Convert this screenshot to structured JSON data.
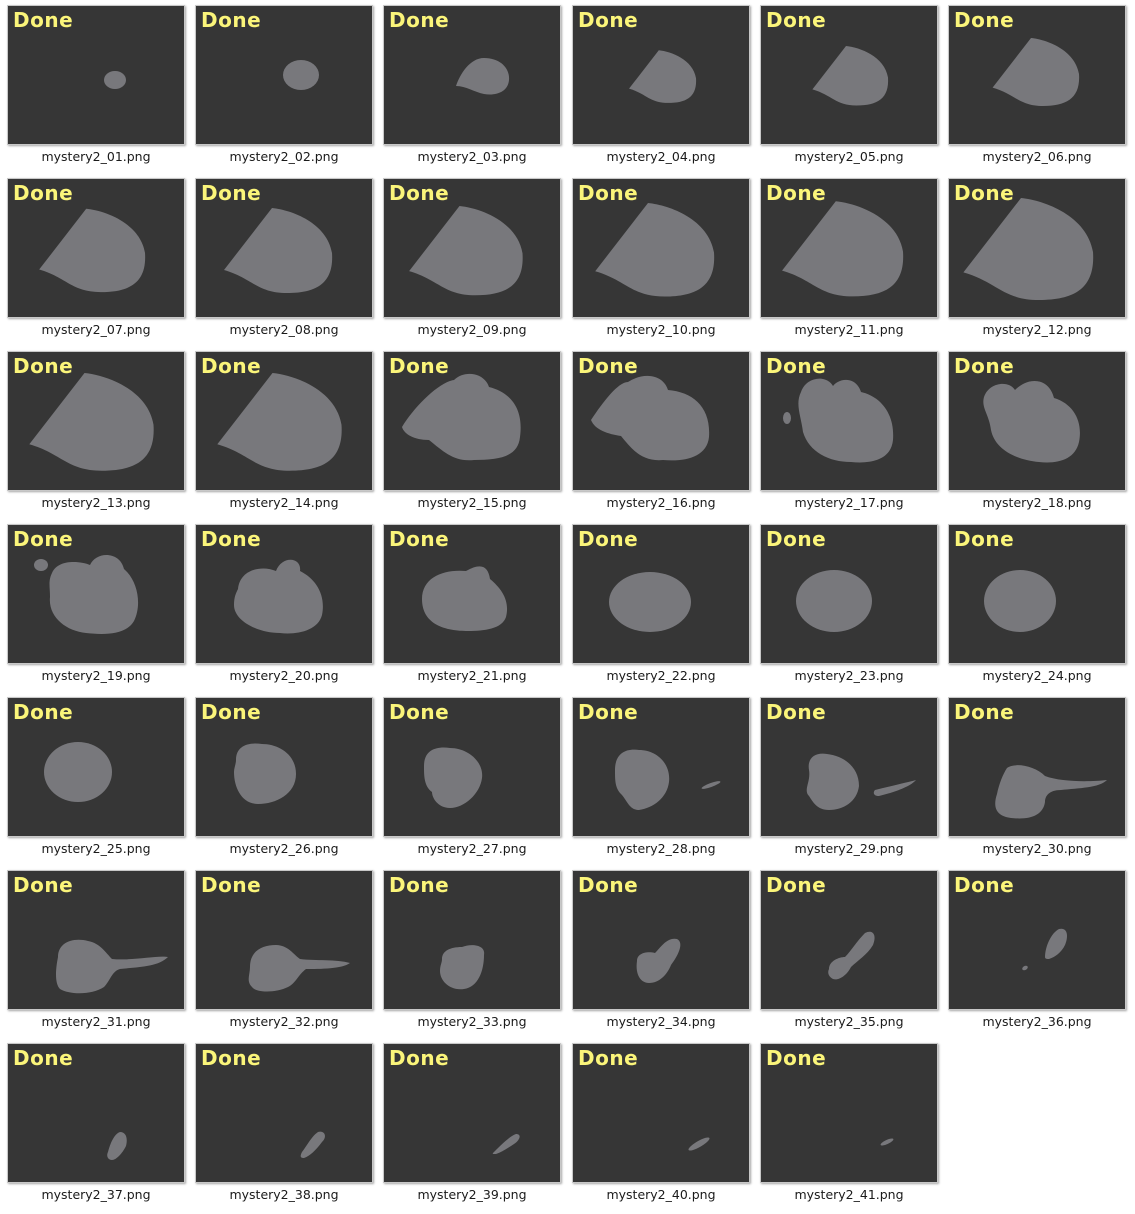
{
  "colors": {
    "thumbnail_background": "#363636",
    "shape_fill": "#78787c",
    "status_text": "#fbf57a",
    "filename_text": "#1a1a1a"
  },
  "items": [
    {
      "status": "Done",
      "filename": "mystery2_01.png"
    },
    {
      "status": "Done",
      "filename": "mystery2_02.png"
    },
    {
      "status": "Done",
      "filename": "mystery2_03.png"
    },
    {
      "status": "Done",
      "filename": "mystery2_04.png"
    },
    {
      "status": "Done",
      "filename": "mystery2_05.png"
    },
    {
      "status": "Done",
      "filename": "mystery2_06.png"
    },
    {
      "status": "Done",
      "filename": "mystery2_07.png"
    },
    {
      "status": "Done",
      "filename": "mystery2_08.png"
    },
    {
      "status": "Done",
      "filename": "mystery2_09.png"
    },
    {
      "status": "Done",
      "filename": "mystery2_10.png"
    },
    {
      "status": "Done",
      "filename": "mystery2_11.png"
    },
    {
      "status": "Done",
      "filename": "mystery2_12.png"
    },
    {
      "status": "Done",
      "filename": "mystery2_13.png"
    },
    {
      "status": "Done",
      "filename": "mystery2_14.png"
    },
    {
      "status": "Done",
      "filename": "mystery2_15.png"
    },
    {
      "status": "Done",
      "filename": "mystery2_16.png"
    },
    {
      "status": "Done",
      "filename": "mystery2_17.png"
    },
    {
      "status": "Done",
      "filename": "mystery2_18.png"
    },
    {
      "status": "Done",
      "filename": "mystery2_19.png"
    },
    {
      "status": "Done",
      "filename": "mystery2_20.png"
    },
    {
      "status": "Done",
      "filename": "mystery2_21.png"
    },
    {
      "status": "Done",
      "filename": "mystery2_22.png"
    },
    {
      "status": "Done",
      "filename": "mystery2_23.png"
    },
    {
      "status": "Done",
      "filename": "mystery2_24.png"
    },
    {
      "status": "Done",
      "filename": "mystery2_25.png"
    },
    {
      "status": "Done",
      "filename": "mystery2_26.png"
    },
    {
      "status": "Done",
      "filename": "mystery2_27.png"
    },
    {
      "status": "Done",
      "filename": "mystery2_28.png"
    },
    {
      "status": "Done",
      "filename": "mystery2_29.png"
    },
    {
      "status": "Done",
      "filename": "mystery2_30.png"
    },
    {
      "status": "Done",
      "filename": "mystery2_31.png"
    },
    {
      "status": "Done",
      "filename": "mystery2_32.png"
    },
    {
      "status": "Done",
      "filename": "mystery2_33.png"
    },
    {
      "status": "Done",
      "filename": "mystery2_34.png"
    },
    {
      "status": "Done",
      "filename": "mystery2_35.png"
    },
    {
      "status": "Done",
      "filename": "mystery2_36.png"
    },
    {
      "status": "Done",
      "filename": "mystery2_37.png"
    },
    {
      "status": "Done",
      "filename": "mystery2_38.png"
    },
    {
      "status": "Done",
      "filename": "mystery2_39.png"
    },
    {
      "status": "Done",
      "filename": "mystery2_40.png"
    },
    {
      "status": "Done",
      "filename": "mystery2_41.png"
    }
  ]
}
